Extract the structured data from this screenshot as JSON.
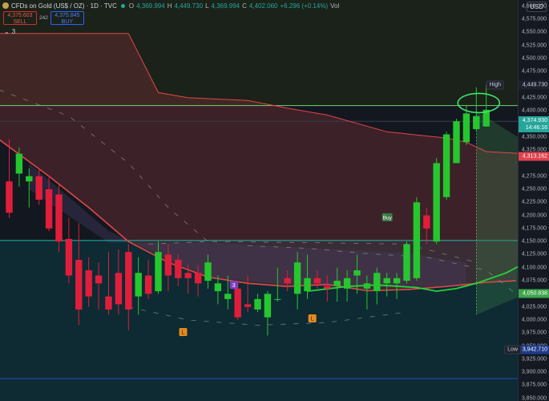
{
  "header": {
    "symbol": "CFDs on Gold (US$ / OZ) · 1D · TVC",
    "open_label": "O",
    "open": "4,369.994",
    "high_label": "H",
    "high": "4,449.730",
    "low_label": "L",
    "low": "4,369.994",
    "close_label": "C",
    "close": "4,402.060",
    "change": "+6.296 (+0.14%)",
    "vol_label": "Vol"
  },
  "trade": {
    "sell_price": "4,375.603",
    "sell_label": "SELL",
    "spread": "242",
    "buy_price": "4,375.845",
    "buy_label": "BUY"
  },
  "indicators_toggle": {
    "chevron": "⌄",
    "count": "3"
  },
  "axis": {
    "currency": "USD",
    "ticks": [
      "4,600.000",
      "4,575.000",
      "4,550.000",
      "4,525.000",
      "4,500.000",
      "4,475.000",
      "4,425.000",
      "4,400.000",
      "4,375.000",
      "4,350.000",
      "4,325.000",
      "4,275.000",
      "4,250.000",
      "4,225.000",
      "4,200.000",
      "4,175.000",
      "4,150.000",
      "4,125.000",
      "4,100.000",
      "4,075.000",
      "4,050.000",
      "4,025.000",
      "4,000.000",
      "3,975.000",
      "3,950.000",
      "3,925.000",
      "3,900.000",
      "3,875.000",
      "3,850.000"
    ],
    "high_label": "High",
    "high_price": "4,449.730",
    "current_price": "4,374.930",
    "countdown": "14:46:16",
    "red_price": "4,313.162",
    "green_price": "4,050.838",
    "low_label": "Low",
    "low_price": "3,942.710"
  },
  "markers": {
    "buy": "Buy",
    "purple": "3",
    "orange": "L"
  },
  "colors": {
    "up": "#26c62f",
    "down": "#e01e3c",
    "band": "#e04747",
    "ma": "#26d437",
    "accent_teal": "#22ab94"
  },
  "chart_data": {
    "type": "candlestick",
    "ylim": [
      3845,
      4612
    ],
    "candles": [
      {
        "o": 4265,
        "h": 4345,
        "l": 4195,
        "c": 4205
      },
      {
        "o": 4280,
        "h": 4330,
        "l": 4255,
        "c": 4318
      },
      {
        "o": 4265,
        "h": 4290,
        "l": 4215,
        "c": 4275
      },
      {
        "o": 4275,
        "h": 4290,
        "l": 4220,
        "c": 4230
      },
      {
        "o": 4250,
        "h": 4275,
        "l": 4170,
        "c": 4175
      },
      {
        "o": 4240,
        "h": 4260,
        "l": 4130,
        "c": 4150
      },
      {
        "o": 4155,
        "h": 4195,
        "l": 4070,
        "c": 4085
      },
      {
        "o": 4115,
        "h": 4185,
        "l": 3990,
        "c": 4020
      },
      {
        "o": 4095,
        "h": 4120,
        "l": 4025,
        "c": 4045
      },
      {
        "o": 4085,
        "h": 4110,
        "l": 4020,
        "c": 4070
      },
      {
        "o": 4045,
        "h": 4130,
        "l": 4010,
        "c": 4020
      },
      {
        "o": 4090,
        "h": 4135,
        "l": 4010,
        "c": 4030
      },
      {
        "o": 4130,
        "h": 4145,
        "l": 3980,
        "c": 4020
      },
      {
        "o": 4045,
        "h": 4120,
        "l": 4010,
        "c": 4090
      },
      {
        "o": 4085,
        "h": 4115,
        "l": 4040,
        "c": 4050
      },
      {
        "o": 4055,
        "h": 4150,
        "l": 4050,
        "c": 4130
      },
      {
        "o": 4125,
        "h": 4145,
        "l": 4055,
        "c": 4085
      },
      {
        "o": 4115,
        "h": 4125,
        "l": 4065,
        "c": 4080
      },
      {
        "o": 4090,
        "h": 4105,
        "l": 4050,
        "c": 4080
      },
      {
        "o": 4090,
        "h": 4105,
        "l": 4045,
        "c": 4070
      },
      {
        "o": 4075,
        "h": 4125,
        "l": 4060,
        "c": 4110
      },
      {
        "o": 4055,
        "h": 4085,
        "l": 4030,
        "c": 4070
      },
      {
        "o": 4040,
        "h": 4085,
        "l": 4020,
        "c": 4050
      },
      {
        "o": 4060,
        "h": 4075,
        "l": 4000,
        "c": 4005
      },
      {
        "o": 4030,
        "h": 4085,
        "l": 4015,
        "c": 4025
      },
      {
        "o": 4020,
        "h": 4050,
        "l": 4015,
        "c": 4040
      },
      {
        "o": 4005,
        "h": 4055,
        "l": 3970,
        "c": 4050
      },
      {
        "o": 4040,
        "h": 4100,
        "l": 4035,
        "c": 4040
      },
      {
        "o": 4080,
        "h": 4095,
        "l": 4055,
        "c": 4070
      },
      {
        "o": 4050,
        "h": 4130,
        "l": 4020,
        "c": 4110
      },
      {
        "o": 4055,
        "h": 4125,
        "l": 4040,
        "c": 4080
      },
      {
        "o": 4080,
        "h": 4095,
        "l": 4060,
        "c": 4070
      },
      {
        "o": 4065,
        "h": 4085,
        "l": 4035,
        "c": 4060
      },
      {
        "o": 4065,
        "h": 4100,
        "l": 4035,
        "c": 4075
      },
      {
        "o": 4060,
        "h": 4095,
        "l": 4035,
        "c": 4080
      },
      {
        "o": 4085,
        "h": 4125,
        "l": 4050,
        "c": 4095
      },
      {
        "o": 4060,
        "h": 4085,
        "l": 4020,
        "c": 4070
      },
      {
        "o": 4055,
        "h": 4100,
        "l": 4030,
        "c": 4090
      },
      {
        "o": 4070,
        "h": 4090,
        "l": 4045,
        "c": 4080
      },
      {
        "o": 4070,
        "h": 4090,
        "l": 4040,
        "c": 4080
      },
      {
        "o": 4075,
        "h": 4150,
        "l": 4070,
        "c": 4145
      },
      {
        "o": 4080,
        "h": 4235,
        "l": 4075,
        "c": 4225
      },
      {
        "o": 4200,
        "h": 4215,
        "l": 4145,
        "c": 4175
      },
      {
        "o": 4150,
        "h": 4310,
        "l": 4145,
        "c": 4300
      },
      {
        "o": 4235,
        "h": 4360,
        "l": 4230,
        "c": 4355
      },
      {
        "o": 4300,
        "h": 4385,
        "l": 4300,
        "c": 4380
      },
      {
        "o": 4340,
        "h": 4410,
        "l": 4335,
        "c": 4395
      },
      {
        "o": 4365,
        "h": 4445,
        "l": 4360,
        "c": 4390
      },
      {
        "o": 4370,
        "h": 4450,
        "l": 4370,
        "c": 4402
      }
    ],
    "upper_band": [
      {
        "i": -1,
        "v": 4548
      },
      {
        "i": 12,
        "v": 4548
      },
      {
        "i": 15,
        "v": 4435
      },
      {
        "i": 18,
        "v": 4425
      },
      {
        "i": 24,
        "v": 4420
      },
      {
        "i": 28,
        "v": 4405
      },
      {
        "i": 32,
        "v": 4392
      },
      {
        "i": 38,
        "v": 4360
      },
      {
        "i": 44,
        "v": 4348
      },
      {
        "i": 46,
        "v": 4340
      },
      {
        "i": 48,
        "v": 4322
      },
      {
        "i": 52,
        "v": 4318
      }
    ],
    "ma": [
      {
        "i": -1,
        "v": 4345
      },
      {
        "i": 4,
        "v": 4275
      },
      {
        "i": 8,
        "v": 4215
      },
      {
        "i": 12,
        "v": 4150
      },
      {
        "i": 16,
        "v": 4110
      },
      {
        "i": 20,
        "v": 4082
      },
      {
        "i": 24,
        "v": 4070
      },
      {
        "i": 28,
        "v": 4064
      },
      {
        "i": 32,
        "v": 4068
      },
      {
        "i": 36,
        "v": 4056
      },
      {
        "i": 40,
        "v": 4058
      },
      {
        "i": 44,
        "v": 4064
      },
      {
        "i": 48,
        "v": 4072
      },
      {
        "i": 51,
        "v": 4075
      }
    ],
    "green_ma": [
      {
        "i": 30,
        "v": 4055
      },
      {
        "i": 34,
        "v": 4064
      },
      {
        "i": 37,
        "v": 4067
      },
      {
        "i": 41,
        "v": 4062
      },
      {
        "i": 43,
        "v": 4055
      },
      {
        "i": 45,
        "v": 4060
      },
      {
        "i": 47,
        "v": 4070
      },
      {
        "i": 50,
        "v": 4090
      },
      {
        "i": 53,
        "v": 4120
      },
      {
        "i": 56,
        "v": 4150
      },
      {
        "i": 58,
        "v": 4178
      }
    ],
    "lower_dashed": [
      {
        "i": 24,
        "v": 4142
      },
      {
        "i": 30,
        "v": 4137
      },
      {
        "i": 36,
        "v": 4127
      },
      {
        "i": 42,
        "v": 4120
      },
      {
        "i": 48,
        "v": 4095
      },
      {
        "i": 51,
        "v": 4050
      },
      {
        "i": 53,
        "v": 4010
      },
      {
        "i": 56,
        "v": 3985
      }
    ],
    "upper_dashed": [
      {
        "i": -1,
        "v": 4440
      },
      {
        "i": 6,
        "v": 4390
      },
      {
        "i": 12,
        "v": 4300
      },
      {
        "i": 16,
        "v": 4215
      },
      {
        "i": 20,
        "v": 4150
      }
    ],
    "levels": {
      "upper_green": 4410,
      "gray": 4380,
      "teal": 4152,
      "blue_low": 3888
    },
    "projection": {
      "from": 47,
      "to": 57,
      "top_start": 4400,
      "top_end": 4280,
      "bottom_start": 4010,
      "bottom_end": 4090
    }
  }
}
